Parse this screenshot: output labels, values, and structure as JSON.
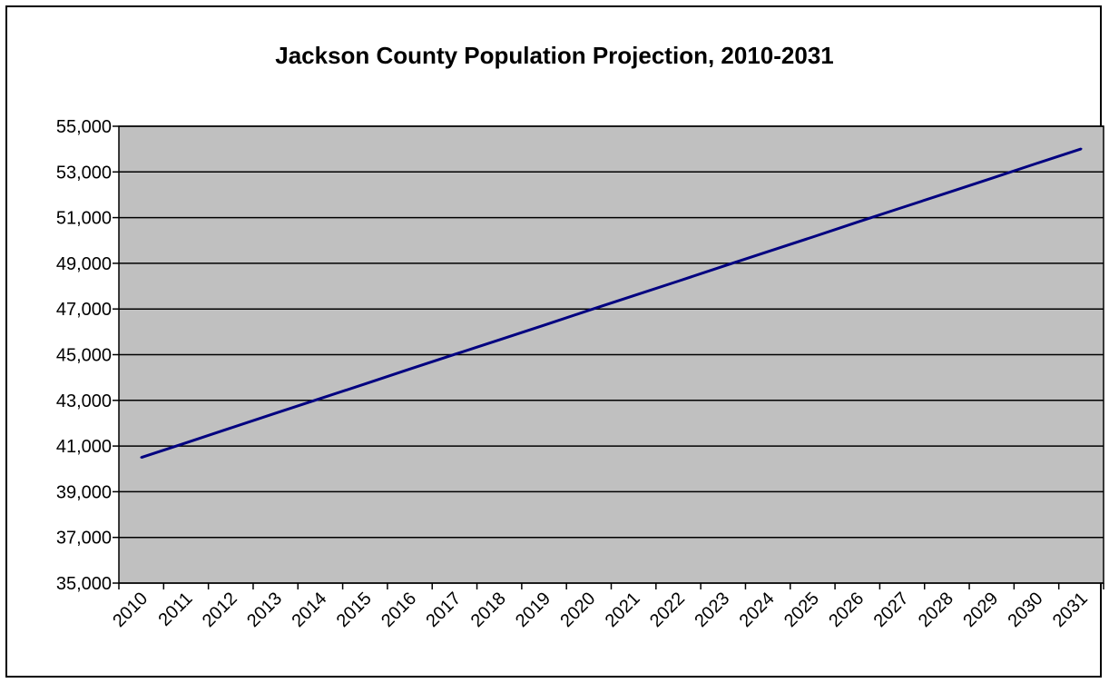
{
  "chart_data": {
    "type": "line",
    "title": "Jackson County Population Projection, 2010-2031",
    "xlabel": "",
    "ylabel": "",
    "categories": [
      "2010",
      "2011",
      "2012",
      "2013",
      "2014",
      "2015",
      "2016",
      "2017",
      "2018",
      "2019",
      "2020",
      "2021",
      "2022",
      "2023",
      "2024",
      "2025",
      "2026",
      "2027",
      "2028",
      "2029",
      "2030",
      "2031"
    ],
    "y_tick_labels": [
      "35,000",
      "37,000",
      "39,000",
      "41,000",
      "43,000",
      "45,000",
      "47,000",
      "49,000",
      "51,000",
      "53,000",
      "55,000"
    ],
    "series": [
      {
        "values": [
          40500,
          41140,
          41790,
          42440,
          43080,
          43720,
          44370,
          45010,
          45650,
          46290,
          46940,
          47580,
          48220,
          48870,
          49510,
          50150,
          50800,
          51440,
          52080,
          52720,
          53370,
          54010
        ]
      }
    ],
    "ylim": [
      35000,
      55000
    ],
    "grid": true,
    "legend": "none",
    "colors": {
      "line": "#000080",
      "plot_background": "#C0C0C0",
      "gridline": "#000000",
      "frame": "#000000"
    }
  }
}
